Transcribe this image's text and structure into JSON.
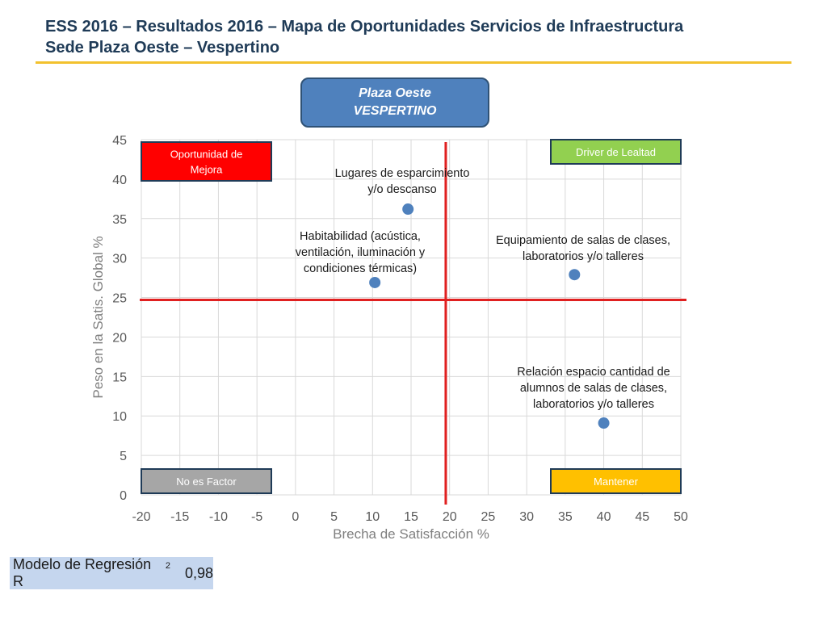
{
  "header": {
    "line1": "ESS 2016 – Resultados 2016 – Mapa de Oportunidades Servicios de Infraestructura",
    "line2": "Sede Plaza Oeste – Vespertino"
  },
  "badge": {
    "line1": "Plaza Oeste",
    "line2": "VESPERTINO"
  },
  "regression": {
    "label": "Modelo de Regresión R",
    "superscript": "2",
    "value": "0,98"
  },
  "colors": {
    "accent_rule": "#f2c12e",
    "point": "#4f81bd",
    "divider": "#e02020",
    "quadrant_red": "#ff0000",
    "quadrant_green": "#92d050",
    "quadrant_gray": "#a6a6a6",
    "quadrant_yellow": "#ffc000"
  },
  "chart_data": {
    "type": "scatter",
    "xlabel": "Brecha de Satisfacción %",
    "ylabel": "Peso en la Satis. Global %",
    "xlim": [
      -20,
      50
    ],
    "ylim": [
      0,
      45
    ],
    "xticks": [
      -20,
      -15,
      -10,
      -5,
      0,
      5,
      10,
      15,
      20,
      25,
      30,
      35,
      40,
      45,
      50
    ],
    "yticks": [
      0,
      5,
      10,
      15,
      20,
      25,
      30,
      35,
      40,
      45
    ],
    "grid": true,
    "divider_x": 19.5,
    "divider_y": 24.7,
    "points": [
      {
        "x": 14.6,
        "y": 36.2,
        "label": [
          "Lugares de esparcimiento",
          "y/o descanso"
        ]
      },
      {
        "x": 10.3,
        "y": 26.9,
        "label": [
          "Habitabilidad (acústica,",
          "ventilación, iluminación y",
          "condiciones térmicas)"
        ]
      },
      {
        "x": 36.2,
        "y": 27.9,
        "label": [
          "Equipamiento de salas de clases,",
          "laboratorios y/o talleres"
        ]
      },
      {
        "x": 40.0,
        "y": 9.1,
        "label": [
          "Relación espacio cantidad de",
          "alumnos de salas de clases,",
          "laboratorios y/o talleres"
        ]
      }
    ],
    "quadrants": [
      {
        "id": "top-left",
        "label": [
          "Oportunidad de",
          "Mejora"
        ],
        "color": "#ff0000"
      },
      {
        "id": "top-right",
        "label": [
          "Driver de Lealtad"
        ],
        "color": "#92d050"
      },
      {
        "id": "bottom-left",
        "label": [
          "No es Factor"
        ],
        "color": "#a6a6a6"
      },
      {
        "id": "bottom-right",
        "label": [
          "Mantener"
        ],
        "color": "#ffc000"
      }
    ]
  }
}
